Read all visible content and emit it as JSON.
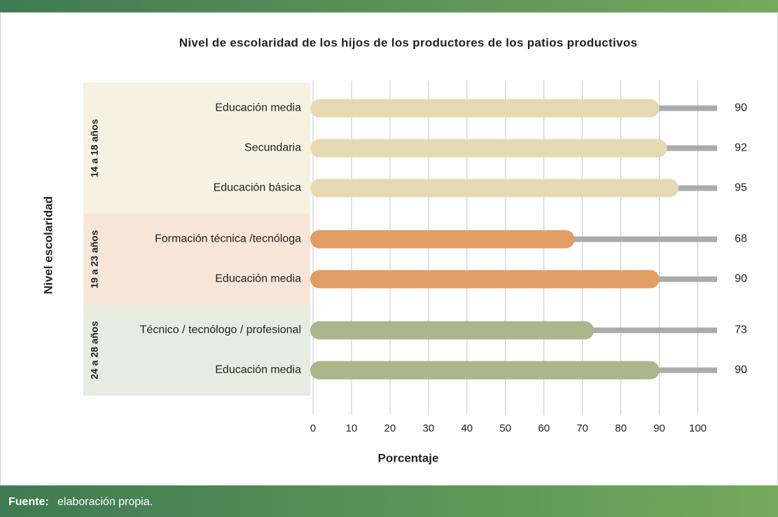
{
  "chart_data": {
    "type": "bar",
    "orientation": "horizontal",
    "title": "Nivel de escolaridad de los hijos de los productores de los patios productivos",
    "ylabel": "Nivel escolaridad",
    "xlabel": "Porcentaje",
    "xlim": [
      0,
      105
    ],
    "xticks": [
      0,
      10,
      20,
      30,
      40,
      50,
      60,
      70,
      80,
      90,
      100
    ],
    "grid": true,
    "track_color": "#ababab",
    "groups": [
      {
        "name": "14 a 18 años",
        "color": "#e6d9b1",
        "band_color": "#f7f1e1",
        "categories": [
          "Educación media",
          "Secundaria",
          "Educación básica"
        ],
        "values": [
          90,
          92,
          95
        ]
      },
      {
        "name": "19 a 23 años",
        "color": "#e29d65",
        "band_color": "#f7e6d8",
        "categories": [
          "Formación técnica /tecnóloga",
          "Educación media"
        ],
        "values": [
          68,
          90
        ]
      },
      {
        "name": "24 a 28 años",
        "color": "#a9b78b",
        "band_color": "#e7ece1",
        "categories": [
          "Técnico / tecnólogo / profesional",
          "Educación media"
        ],
        "values": [
          73,
          90
        ]
      }
    ]
  },
  "footer": {
    "label": "Fuente:",
    "text": "elaboración propia."
  }
}
